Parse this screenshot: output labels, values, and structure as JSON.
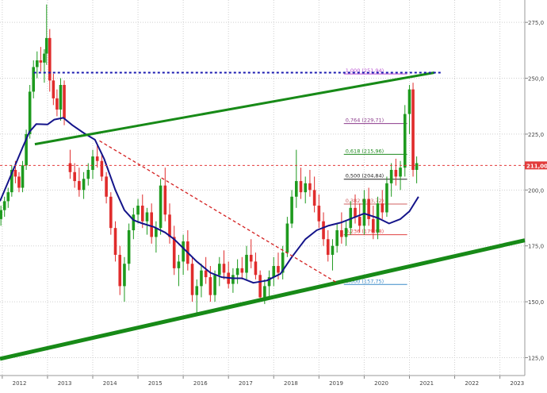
{
  "chart_data": {
    "type": "candlestick",
    "title": "",
    "xlabel": "",
    "ylabel": "",
    "x_ticks": [
      "2012",
      "2013",
      "2014",
      "2015",
      "2016",
      "2017",
      "2018",
      "2019",
      "2020",
      "2021",
      "2022",
      "2023"
    ],
    "y_ticks": [
      125,
      150,
      175,
      200,
      225,
      250,
      275
    ],
    "ylim": [
      117,
      285
    ],
    "xlim": [
      2011.95,
      2023.55
    ],
    "grid": "dotted",
    "current_price": {
      "label": "211,00",
      "value": 211.0,
      "color": "#e23b3b"
    },
    "fibonacci_levels": [
      {
        "label": "1,000 (251,94)",
        "value": 251.94,
        "color": "#b84fd0"
      },
      {
        "label": "0,764 (229,71)",
        "value": 229.71,
        "color": "#8b3a8b"
      },
      {
        "label": "0,618 (215,96)",
        "value": 215.96,
        "color": "#1e8a1e"
      },
      {
        "label": "0,500 (204,84)",
        "value": 204.84,
        "color": "#222222"
      },
      {
        "label": "0,382 (193,72)",
        "value": 193.72,
        "color": "#d06060"
      },
      {
        "label": "0,236 (179,98)",
        "value": 179.98,
        "color": "#e04040"
      },
      {
        "label": "0,000 (157,75)",
        "value": 157.75,
        "color": "#3a8ac8"
      }
    ],
    "trendlines": [
      {
        "name": "upper-channel",
        "color": "#178a17",
        "width": 3,
        "dash": "",
        "points": [
          [
            2012.72,
            220.5
          ],
          [
            2021.55,
            252.5
          ]
        ]
      },
      {
        "name": "lower-support",
        "color": "#178a17",
        "width": 5,
        "dash": "",
        "points": [
          [
            2011.95,
            124.5
          ],
          [
            2023.55,
            177.5
          ]
        ]
      },
      {
        "name": "downtrend",
        "color": "#d42020",
        "width": 1.3,
        "dash": "4,3",
        "points": [
          [
            2014.15,
            222.0
          ],
          [
            2019.4,
            158.5
          ]
        ]
      },
      {
        "name": "resistance",
        "color": "#1a1ab0",
        "width": 2,
        "dash": "3,3",
        "points": [
          [
            2012.7,
            252.5
          ],
          [
            2021.7,
            252.5
          ]
        ]
      }
    ],
    "moving_average": {
      "color": "#14148a",
      "points": [
        [
          2011.95,
          195
        ],
        [
          2012.2,
          207
        ],
        [
          2012.45,
          219
        ],
        [
          2012.6,
          226
        ],
        [
          2012.75,
          229.5
        ],
        [
          2013.0,
          229.3
        ],
        [
          2013.15,
          231.5
        ],
        [
          2013.35,
          232.3
        ],
        [
          2013.55,
          229
        ],
        [
          2013.8,
          225.5
        ],
        [
          2014.05,
          222.5
        ],
        [
          2014.25,
          214
        ],
        [
          2014.5,
          200
        ],
        [
          2014.7,
          191
        ],
        [
          2014.9,
          186.5
        ],
        [
          2015.1,
          185
        ],
        [
          2015.35,
          183.5
        ],
        [
          2015.6,
          181
        ],
        [
          2015.8,
          178
        ],
        [
          2016.0,
          174
        ],
        [
          2016.3,
          168
        ],
        [
          2016.6,
          163
        ],
        [
          2016.85,
          161
        ],
        [
          2017.1,
          160.5
        ],
        [
          2017.3,
          160.5
        ],
        [
          2017.55,
          158.5
        ],
        [
          2017.85,
          159.5
        ],
        [
          2018.15,
          162.5
        ],
        [
          2018.4,
          170
        ],
        [
          2018.7,
          178
        ],
        [
          2018.95,
          182
        ],
        [
          2019.2,
          184
        ],
        [
          2019.5,
          185.5
        ],
        [
          2019.75,
          187.5
        ],
        [
          2020.0,
          189.5
        ],
        [
          2020.3,
          187.5
        ],
        [
          2020.55,
          185
        ],
        [
          2020.8,
          187
        ],
        [
          2021.0,
          190.5
        ],
        [
          2021.2,
          197
        ]
      ]
    },
    "candles": [
      [
        2011.97,
        187,
        193,
        184,
        191
      ],
      [
        2012.05,
        191,
        197,
        188,
        195
      ],
      [
        2012.13,
        195,
        201,
        192,
        199
      ],
      [
        2012.21,
        199,
        211,
        197,
        209
      ],
      [
        2012.29,
        209,
        213,
        203,
        206
      ],
      [
        2012.37,
        206,
        208,
        199,
        201
      ],
      [
        2012.45,
        201,
        213,
        199,
        211
      ],
      [
        2012.53,
        211,
        227,
        209,
        225
      ],
      [
        2012.61,
        225,
        247,
        223,
        244
      ],
      [
        2012.69,
        244,
        258,
        241,
        255
      ],
      [
        2012.77,
        255,
        262,
        250,
        258
      ],
      [
        2012.85,
        258,
        264,
        253,
        257
      ],
      [
        2012.93,
        257,
        263,
        248,
        261
      ],
      [
        2012.98,
        261,
        283,
        256,
        268
      ],
      [
        2013.05,
        268,
        272,
        244,
        249
      ],
      [
        2013.13,
        249,
        252,
        238,
        241
      ],
      [
        2013.21,
        241,
        245,
        233,
        236
      ],
      [
        2013.29,
        236,
        250,
        231,
        247
      ],
      [
        2013.37,
        247,
        249,
        229,
        232
      ],
      [
        2013.5,
        212,
        218,
        205,
        208
      ],
      [
        2013.6,
        208,
        212,
        201,
        204
      ],
      [
        2013.7,
        204,
        210,
        197,
        200
      ],
      [
        2013.8,
        200,
        208,
        196,
        205
      ],
      [
        2013.9,
        205,
        212,
        202,
        209
      ],
      [
        2014.0,
        209,
        218,
        205,
        215
      ],
      [
        2014.1,
        215,
        220,
        210,
        213
      ],
      [
        2014.2,
        213,
        216,
        204,
        206
      ],
      [
        2014.3,
        206,
        208,
        194,
        197
      ],
      [
        2014.4,
        197,
        199,
        180,
        183
      ],
      [
        2014.5,
        183,
        186,
        168,
        171
      ],
      [
        2014.6,
        171,
        175,
        153,
        157
      ],
      [
        2014.7,
        157,
        170,
        150,
        167
      ],
      [
        2014.8,
        167,
        185,
        164,
        182
      ],
      [
        2014.9,
        182,
        192,
        178,
        189
      ],
      [
        2015.0,
        189,
        196,
        185,
        193
      ],
      [
        2015.1,
        193,
        198,
        183,
        186
      ],
      [
        2015.2,
        186,
        192,
        180,
        190
      ],
      [
        2015.3,
        190,
        194,
        176,
        179
      ],
      [
        2015.4,
        179,
        186,
        172,
        183
      ],
      [
        2015.5,
        183,
        205,
        180,
        202
      ],
      [
        2015.6,
        202,
        210,
        186,
        189
      ],
      [
        2015.7,
        189,
        194,
        176,
        179
      ],
      [
        2015.8,
        179,
        184,
        162,
        165
      ],
      [
        2015.9,
        165,
        171,
        157,
        168
      ],
      [
        2016.0,
        168,
        180,
        162,
        177
      ],
      [
        2016.1,
        177,
        182,
        164,
        167
      ],
      [
        2016.2,
        167,
        170,
        150,
        153
      ],
      [
        2016.3,
        153,
        160,
        145,
        157
      ],
      [
        2016.4,
        157,
        167,
        152,
        164
      ],
      [
        2016.5,
        164,
        170,
        158,
        161
      ],
      [
        2016.6,
        161,
        166,
        150,
        153
      ],
      [
        2016.7,
        153,
        164,
        150,
        162
      ],
      [
        2016.8,
        162,
        170,
        157,
        167
      ],
      [
        2016.9,
        167,
        173,
        160,
        163
      ],
      [
        2017.0,
        163,
        168,
        156,
        158
      ],
      [
        2017.1,
        158,
        165,
        154,
        162
      ],
      [
        2017.2,
        162,
        169,
        158,
        165
      ],
      [
        2017.3,
        165,
        170,
        160,
        163
      ],
      [
        2017.4,
        163,
        175,
        160,
        171
      ],
      [
        2017.5,
        171,
        178,
        165,
        168
      ],
      [
        2017.6,
        168,
        172,
        160,
        162
      ],
      [
        2017.7,
        162,
        164,
        150,
        152
      ],
      [
        2017.8,
        152,
        160,
        149,
        157
      ],
      [
        2017.9,
        157,
        164,
        152,
        161
      ],
      [
        2018.0,
        161,
        170,
        157,
        166
      ],
      [
        2018.1,
        166,
        172,
        160,
        163
      ],
      [
        2018.2,
        163,
        175,
        160,
        172
      ],
      [
        2018.3,
        172,
        188,
        170,
        185
      ],
      [
        2018.4,
        185,
        200,
        183,
        197
      ],
      [
        2018.5,
        197,
        218,
        192,
        204
      ],
      [
        2018.6,
        204,
        210,
        196,
        199
      ],
      [
        2018.7,
        199,
        206,
        194,
        203
      ],
      [
        2018.8,
        203,
        209,
        197,
        200
      ],
      [
        2018.9,
        200,
        206,
        190,
        193
      ],
      [
        2019.0,
        193,
        198,
        183,
        186
      ],
      [
        2019.1,
        186,
        190,
        175,
        178
      ],
      [
        2019.2,
        178,
        182,
        168,
        171
      ],
      [
        2019.3,
        171,
        178,
        164,
        175
      ],
      [
        2019.4,
        175,
        185,
        172,
        182
      ],
      [
        2019.5,
        182,
        190,
        176,
        179
      ],
      [
        2019.6,
        179,
        186,
        175,
        183
      ],
      [
        2019.7,
        183,
        195,
        180,
        192
      ],
      [
        2019.8,
        192,
        198,
        185,
        188
      ],
      [
        2019.9,
        188,
        194,
        181,
        184
      ],
      [
        2020.0,
        184,
        200,
        180,
        196
      ],
      [
        2020.1,
        196,
        201,
        184,
        187
      ],
      [
        2020.2,
        187,
        193,
        178,
        181
      ],
      [
        2020.3,
        181,
        197,
        178,
        194
      ],
      [
        2020.4,
        194,
        200,
        187,
        190
      ],
      [
        2020.5,
        190,
        206,
        188,
        203
      ],
      [
        2020.6,
        203,
        212,
        197,
        209
      ],
      [
        2020.7,
        209,
        214,
        202,
        206
      ],
      [
        2020.8,
        206,
        213,
        200,
        210
      ],
      [
        2020.9,
        210,
        238,
        206,
        234
      ],
      [
        2021.0,
        234,
        247,
        225,
        245
      ],
      [
        2021.08,
        245,
        248,
        206,
        209
      ],
      [
        2021.16,
        209,
        215,
        203,
        212
      ]
    ]
  }
}
